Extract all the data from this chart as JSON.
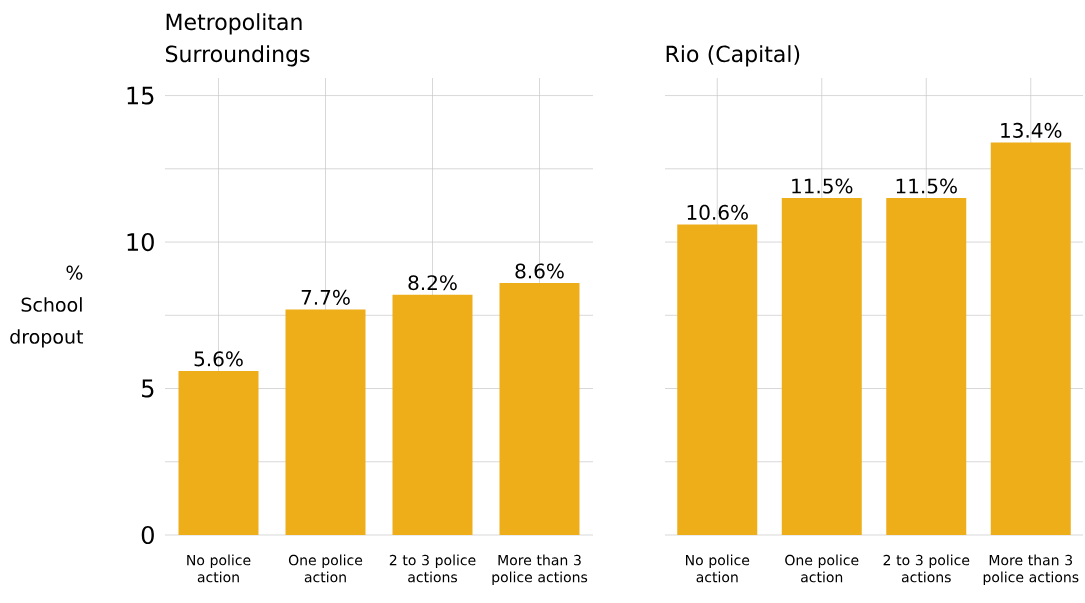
{
  "chart_data": [
    {
      "type": "bar",
      "title": "Metropolitan Surroundings",
      "ylabel": "% School dropout",
      "categories": [
        "No police action",
        "One police action",
        "2 to 3 police actions",
        "More than 3 police actions"
      ],
      "values": [
        5.6,
        7.7,
        8.2,
        8.6
      ],
      "value_labels": [
        "5.6%",
        "7.7%",
        "8.2%",
        "8.6%"
      ],
      "color": "#edae1a",
      "ylim": [
        0,
        15.6
      ],
      "yticks": [
        0,
        {
          "value": 2.5,
          "label": null
        },
        5,
        {
          "value": 7.5,
          "label": null
        },
        10,
        {
          "value": 12.5,
          "label": null
        },
        15
      ],
      "grid": true
    },
    {
      "type": "bar",
      "title": "Rio (Capital)",
      "categories": [
        "No police action",
        "One police action",
        "2 to 3 police actions",
        "More than 3 police actions"
      ],
      "values": [
        10.6,
        11.5,
        11.5,
        13.4
      ],
      "value_labels": [
        "10.6%",
        "11.5%",
        "11.5%",
        "13.4%"
      ],
      "color": "#edae1a",
      "ylim": [
        0,
        15.6
      ],
      "yticks": [
        0,
        {
          "value": 2.5,
          "label": null
        },
        5,
        {
          "value": 7.5,
          "label": null
        },
        10,
        {
          "value": 12.5,
          "label": null
        },
        15
      ],
      "grid": true,
      "tick_labels": "x"
    }
  ]
}
